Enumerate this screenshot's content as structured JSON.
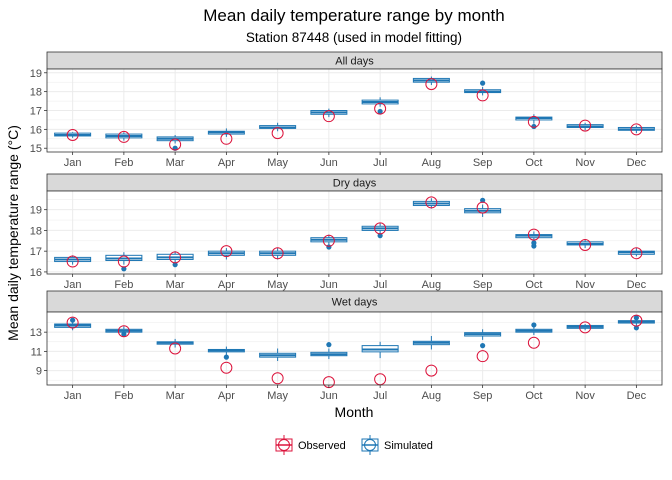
{
  "chart_data": {
    "type": "boxplot",
    "title": "Mean daily temperature range by month",
    "subtitle": "Station 87448 (used in model fitting)",
    "xlabel": "Month",
    "ylabel": "Mean daily temperature range (°C)",
    "categories": [
      "Jan",
      "Feb",
      "Mar",
      "Apr",
      "May",
      "Jun",
      "Jul",
      "Aug",
      "Sep",
      "Oct",
      "Nov",
      "Dec"
    ],
    "legend": {
      "position": "bottom",
      "items": [
        {
          "label": "Observed",
          "color": "#dc143c"
        },
        {
          "label": "Simulated",
          "color": "#1f77b4"
        }
      ]
    },
    "colors": {
      "observed": "#dc143c",
      "simulated": "#1f77b4",
      "strip": "#d9d9d9",
      "grid": "#ebebeb",
      "panel_border": "#333333"
    },
    "grid": true,
    "panels": [
      {
        "label": "All days",
        "ylim": [
          14.8,
          19.2
        ],
        "yticks": [
          15,
          16,
          17,
          18,
          19
        ],
        "observed": [
          15.7,
          15.6,
          15.2,
          15.5,
          15.8,
          16.7,
          17.1,
          18.4,
          17.8,
          16.4,
          16.2,
          16.0
        ],
        "simulated_boxes": [
          {
            "q1": 15.65,
            "median": 15.7,
            "q3": 15.8,
            "lo": 15.55,
            "hi": 15.85,
            "outliers": []
          },
          {
            "q1": 15.55,
            "median": 15.65,
            "q3": 15.75,
            "lo": 15.4,
            "hi": 15.85,
            "outliers": []
          },
          {
            "q1": 15.4,
            "median": 15.5,
            "q3": 15.6,
            "lo": 15.25,
            "hi": 15.7,
            "outliers": [
              15.0
            ]
          },
          {
            "q1": 15.75,
            "median": 15.85,
            "q3": 15.9,
            "lo": 15.6,
            "hi": 16.05,
            "outliers": []
          },
          {
            "q1": 16.05,
            "median": 16.1,
            "q3": 16.2,
            "lo": 15.9,
            "hi": 16.35,
            "outliers": []
          },
          {
            "q1": 16.8,
            "median": 16.9,
            "q3": 17.0,
            "lo": 16.65,
            "hi": 17.1,
            "outliers": []
          },
          {
            "q1": 17.35,
            "median": 17.45,
            "q3": 17.55,
            "lo": 17.2,
            "hi": 17.7,
            "outliers": [
              16.95
            ]
          },
          {
            "q1": 18.5,
            "median": 18.6,
            "q3": 18.7,
            "lo": 18.35,
            "hi": 18.8,
            "outliers": []
          },
          {
            "q1": 17.95,
            "median": 18.0,
            "q3": 18.1,
            "lo": 17.8,
            "hi": 18.25,
            "outliers": [
              18.45
            ]
          },
          {
            "q1": 16.5,
            "median": 16.6,
            "q3": 16.65,
            "lo": 16.3,
            "hi": 16.8,
            "outliers": [
              16.15
            ]
          },
          {
            "q1": 16.1,
            "median": 16.15,
            "q3": 16.25,
            "lo": 15.95,
            "hi": 16.35,
            "outliers": []
          },
          {
            "q1": 15.95,
            "median": 16.0,
            "q3": 16.1,
            "lo": 15.8,
            "hi": 16.2,
            "outliers": []
          }
        ]
      },
      {
        "label": "Dry days",
        "ylim": [
          15.9,
          19.9
        ],
        "yticks": [
          16,
          17,
          18,
          19
        ],
        "observed": [
          16.5,
          16.5,
          16.7,
          17.0,
          16.9,
          17.5,
          18.1,
          19.35,
          19.1,
          17.8,
          17.3,
          16.9
        ],
        "simulated_boxes": [
          {
            "q1": 16.5,
            "median": 16.6,
            "q3": 16.7,
            "lo": 16.35,
            "hi": 16.8,
            "outliers": []
          },
          {
            "q1": 16.55,
            "median": 16.65,
            "q3": 16.8,
            "lo": 16.35,
            "hi": 16.95,
            "outliers": [
              16.15
            ]
          },
          {
            "q1": 16.6,
            "median": 16.7,
            "q3": 16.85,
            "lo": 16.45,
            "hi": 17.0,
            "outliers": [
              16.35
            ]
          },
          {
            "q1": 16.8,
            "median": 16.9,
            "q3": 17.0,
            "lo": 16.6,
            "hi": 17.15,
            "outliers": []
          },
          {
            "q1": 16.8,
            "median": 16.9,
            "q3": 17.0,
            "lo": 16.6,
            "hi": 17.15,
            "outliers": []
          },
          {
            "q1": 17.45,
            "median": 17.55,
            "q3": 17.65,
            "lo": 17.25,
            "hi": 17.8,
            "outliers": [
              17.2
            ]
          },
          {
            "q1": 18.0,
            "median": 18.1,
            "q3": 18.2,
            "lo": 17.85,
            "hi": 18.35,
            "outliers": [
              17.75
            ]
          },
          {
            "q1": 19.2,
            "median": 19.3,
            "q3": 19.4,
            "lo": 19.05,
            "hi": 19.55,
            "outliers": []
          },
          {
            "q1": 18.85,
            "median": 18.95,
            "q3": 19.05,
            "lo": 18.65,
            "hi": 19.25,
            "outliers": [
              19.45
            ]
          },
          {
            "q1": 17.65,
            "median": 17.75,
            "q3": 17.8,
            "lo": 17.5,
            "hi": 17.95,
            "outliers": [
              17.25,
              17.4
            ]
          },
          {
            "q1": 17.3,
            "median": 17.35,
            "q3": 17.45,
            "lo": 17.15,
            "hi": 17.55,
            "outliers": []
          },
          {
            "q1": 16.85,
            "median": 16.95,
            "q3": 17.0,
            "lo": 16.75,
            "hi": 17.15,
            "outliers": []
          }
        ]
      },
      {
        "label": "Wet days",
        "ylim": [
          7.5,
          15.1
        ],
        "yticks": [
          9,
          11,
          13
        ],
        "observed": [
          14.0,
          13.1,
          11.3,
          9.3,
          8.2,
          7.8,
          8.1,
          9.0,
          10.5,
          11.9,
          13.5,
          14.2
        ],
        "simulated_boxes": [
          {
            "q1": 13.5,
            "median": 13.7,
            "q3": 13.85,
            "lo": 13.2,
            "hi": 14.1,
            "outliers": [
              14.25
            ]
          },
          {
            "q1": 13.0,
            "median": 13.15,
            "q3": 13.3,
            "lo": 12.7,
            "hi": 13.6,
            "outliers": [
              12.8
            ]
          },
          {
            "q1": 11.75,
            "median": 11.9,
            "q3": 12.0,
            "lo": 11.4,
            "hi": 12.3,
            "outliers": []
          },
          {
            "q1": 10.95,
            "median": 11.1,
            "q3": 11.2,
            "lo": 10.6,
            "hi": 11.5,
            "outliers": [
              10.4
            ]
          },
          {
            "q1": 10.4,
            "median": 10.6,
            "q3": 10.8,
            "lo": 10.0,
            "hi": 11.3,
            "outliers": []
          },
          {
            "q1": 10.55,
            "median": 10.7,
            "q3": 10.9,
            "lo": 10.2,
            "hi": 11.3,
            "outliers": [
              11.7
            ]
          },
          {
            "q1": 10.95,
            "median": 11.2,
            "q3": 11.6,
            "lo": 10.3,
            "hi": 12.0,
            "outliers": []
          },
          {
            "q1": 11.7,
            "median": 11.9,
            "q3": 12.05,
            "lo": 11.2,
            "hi": 12.6,
            "outliers": []
          },
          {
            "q1": 12.6,
            "median": 12.8,
            "q3": 12.95,
            "lo": 12.2,
            "hi": 13.3,
            "outliers": [
              11.6
            ]
          },
          {
            "q1": 13.0,
            "median": 13.15,
            "q3": 13.3,
            "lo": 12.7,
            "hi": 13.55,
            "outliers": [
              13.75
            ]
          },
          {
            "q1": 13.4,
            "median": 13.55,
            "q3": 13.7,
            "lo": 13.2,
            "hi": 13.85,
            "outliers": []
          },
          {
            "q1": 13.95,
            "median": 14.1,
            "q3": 14.2,
            "lo": 13.7,
            "hi": 14.4,
            "outliers": [
              13.45,
              14.5
            ]
          }
        ]
      }
    ]
  }
}
